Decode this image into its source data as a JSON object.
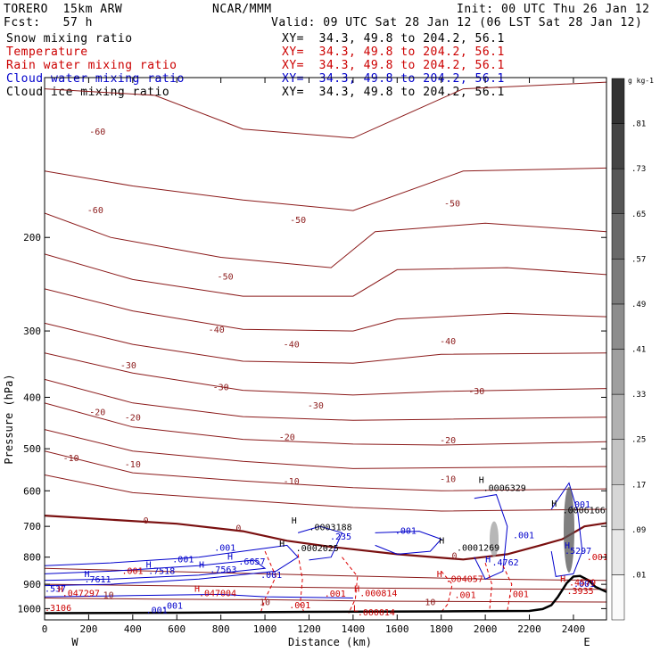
{
  "header": {
    "model": "TORERO  15km ARW",
    "org": "NCAR/MMM",
    "init": "Init: 00 UTC Thu 26 Jan 12",
    "fcst": "Fcst:   57 h",
    "valid": "Valid: 09 UTC Sat 28 Jan 12 (06 LST Sat 28 Jan 12)"
  },
  "fields": [
    {
      "name": "Snow mixing ratio",
      "xy": "XY=  34.3, 49.8 to 204.2, 56.1",
      "name_color": "#000000",
      "xy_color": "#000000"
    },
    {
      "name": "Temperature",
      "xy": "XY=  34.3, 49.8 to 204.2, 56.1",
      "name_color": "#cc0000",
      "xy_color": "#cc0000"
    },
    {
      "name": "Rain water mixing ratio",
      "xy": "XY=  34.3, 49.8 to 204.2, 56.1",
      "name_color": "#cc0000",
      "xy_color": "#cc0000"
    },
    {
      "name": "Cloud water mixing ratio",
      "xy": "XY=  34.3, 49.8 to 204.2, 56.1",
      "name_color": "#0000cc",
      "xy_color": "#0000cc"
    },
    {
      "name": "Cloud ice mixing ratio",
      "xy": "XY=  34.3, 49.8 to 204.2, 56.1",
      "name_color": "#000000",
      "xy_color": "#000000"
    }
  ],
  "chart_data": {
    "type": "contour_cross_section",
    "xlabel": "Distance (km)",
    "ylabel": "Pressure (hPa)",
    "x_ticks": [
      0,
      200,
      400,
      600,
      800,
      1000,
      1200,
      1400,
      1600,
      1800,
      2000,
      2200,
      2400
    ],
    "y_ticks": [
      200,
      300,
      400,
      500,
      600,
      700,
      800,
      900,
      1000
    ],
    "xlim": [
      0,
      2550
    ],
    "ylim": [
      1050,
      100
    ],
    "x_end_labels": {
      "left": "W",
      "right": "E"
    },
    "colorbar": {
      "unit": "g kg-1",
      "levels": [
        ".01",
        ".09",
        ".17",
        ".25",
        ".33",
        ".41",
        ".49",
        ".57",
        ".65",
        ".73",
        ".81"
      ]
    },
    "temperature_contour_labels": [
      {
        "value": "-60",
        "x": 240,
        "p": 128
      },
      {
        "value": "-60",
        "x": 230,
        "p": 180
      },
      {
        "value": "-50",
        "x": 820,
        "p": 240
      },
      {
        "value": "-50",
        "x": 1150,
        "p": 188
      },
      {
        "value": "-50",
        "x": 1850,
        "p": 175
      },
      {
        "value": "-40",
        "x": 780,
        "p": 302
      },
      {
        "value": "-40",
        "x": 1120,
        "p": 322
      },
      {
        "value": "-40",
        "x": 1830,
        "p": 318
      },
      {
        "value": "-30",
        "x": 380,
        "p": 353
      },
      {
        "value": "-30",
        "x": 800,
        "p": 388
      },
      {
        "value": "-30",
        "x": 1230,
        "p": 420
      },
      {
        "value": "-30",
        "x": 1960,
        "p": 395
      },
      {
        "value": "-20",
        "x": 240,
        "p": 432
      },
      {
        "value": "-20",
        "x": 400,
        "p": 442
      },
      {
        "value": "-20",
        "x": 1100,
        "p": 482
      },
      {
        "value": "-20",
        "x": 1830,
        "p": 488
      },
      {
        "value": "-10",
        "x": 120,
        "p": 527
      },
      {
        "value": "-10",
        "x": 400,
        "p": 542
      },
      {
        "value": "-10",
        "x": 1120,
        "p": 583
      },
      {
        "value": "-10",
        "x": 1830,
        "p": 578
      },
      {
        "value": "0",
        "x": 460,
        "p": 692
      },
      {
        "value": "0",
        "x": 880,
        "p": 715
      },
      {
        "value": "0",
        "x": 1860,
        "p": 805
      },
      {
        "value": "10",
        "x": 290,
        "p": 955
      },
      {
        "value": "10",
        "x": 1000,
        "p": 985
      },
      {
        "value": "10",
        "x": 1750,
        "p": 985
      }
    ],
    "maxima_labels": [
      {
        "text": "H",
        "x": 1970,
        "p": 580,
        "color": "#000000"
      },
      {
        "text": ".0006329",
        "x": 1990,
        "p": 600,
        "color": "#000000"
      },
      {
        "text": "H",
        "x": 2300,
        "p": 642,
        "color": "#000000"
      },
      {
        "text": ".0006166",
        "x": 2350,
        "p": 662,
        "color": "#000000"
      },
      {
        "text": ".001",
        "x": 2380,
        "p": 645,
        "color": "#0000cc"
      },
      {
        "text": "H",
        "x": 1120,
        "p": 692,
        "color": "#000000"
      },
      {
        "text": ".0003188",
        "x": 1200,
        "p": 712,
        "color": "#000000"
      },
      {
        "text": "H",
        "x": 1065,
        "p": 765,
        "color": "#000000"
      },
      {
        "text": ".0002025",
        "x": 1140,
        "p": 780,
        "color": "#000000"
      },
      {
        "text": "H",
        "x": 1790,
        "p": 755,
        "color": "#000000"
      },
      {
        "text": ".0001269",
        "x": 1870,
        "p": 778,
        "color": "#000000"
      },
      {
        "text": ".235",
        "x": 1295,
        "p": 742,
        "color": "#0000cc"
      },
      {
        "text": ".001",
        "x": 1590,
        "p": 723,
        "color": "#0000cc"
      },
      {
        "text": ".001",
        "x": 2125,
        "p": 737,
        "color": "#0000cc"
      },
      {
        "text": ".001",
        "x": 770,
        "p": 778,
        "color": "#0000cc"
      },
      {
        "text": ".001",
        "x": 580,
        "p": 818,
        "color": "#0000cc"
      },
      {
        "text": "H",
        "x": 830,
        "p": 808,
        "color": "#0000cc"
      },
      {
        "text": ".6657",
        "x": 880,
        "p": 826,
        "color": "#0000cc"
      },
      {
        "text": "H",
        "x": 700,
        "p": 838,
        "color": "#0000cc"
      },
      {
        "text": ".7563",
        "x": 750,
        "p": 855,
        "color": "#0000cc"
      },
      {
        "text": "H",
        "x": 460,
        "p": 838,
        "color": "#0000cc"
      },
      {
        "text": ".7518",
        "x": 470,
        "p": 860,
        "color": "#0000cc"
      },
      {
        "text": "H",
        "x": 180,
        "p": 872,
        "color": "#0000cc"
      },
      {
        "text": ".7611",
        "x": 180,
        "p": 893,
        "color": "#0000cc"
      },
      {
        "text": ".537",
        "x": 0,
        "p": 930,
        "color": "#0000cc"
      },
      {
        "text": ".001",
        "x": 980,
        "p": 875,
        "color": "#0000cc"
      },
      {
        "text": "H",
        "x": 2000,
        "p": 818,
        "color": "#0000cc"
      },
      {
        "text": ".4762",
        "x": 2030,
        "p": 830,
        "color": "#0000cc"
      },
      {
        "text": "H",
        "x": 2360,
        "p": 770,
        "color": "#0000cc"
      },
      {
        "text": ".5297",
        "x": 2360,
        "p": 788,
        "color": "#0000cc"
      },
      {
        "text": ".001",
        "x": 2400,
        "p": 910,
        "color": "#0000cc"
      },
      {
        "text": ".001",
        "x": 530,
        "p": 1000,
        "color": "#0000cc"
      },
      {
        "text": ".001",
        "x": 460,
        "p": 1020,
        "color": "#0000cc"
      },
      {
        "text": "H",
        "x": 60,
        "p": 932,
        "color": "#cc0000"
      },
      {
        "text": ".047297",
        "x": 80,
        "p": 948,
        "color": "#cc0000"
      },
      {
        "text": "H",
        "x": 680,
        "p": 930,
        "color": "#cc0000"
      },
      {
        "text": ".047004",
        "x": 700,
        "p": 948,
        "color": "#cc0000"
      },
      {
        "text": "H",
        "x": 1405,
        "p": 930,
        "color": "#cc0000"
      },
      {
        "text": ".000814",
        "x": 1430,
        "p": 948,
        "color": "#cc0000"
      },
      {
        "text": "L",
        "x": 1400,
        "p": 1012,
        "color": "#cc0000"
      },
      {
        "text": ".000014",
        "x": 1420,
        "p": 1030,
        "color": "#cc0000"
      },
      {
        "text": "H",
        "x": 1780,
        "p": 872,
        "color": "#cc0000"
      },
      {
        "text": ".004057",
        "x": 1820,
        "p": 890,
        "color": "#cc0000"
      },
      {
        "text": "H",
        "x": 2340,
        "p": 890,
        "color": "#cc0000"
      },
      {
        "text": ".3935",
        "x": 2370,
        "p": 938,
        "color": "#cc0000"
      },
      {
        "text": ".001",
        "x": 1860,
        "p": 955,
        "color": "#cc0000"
      },
      {
        "text": ".001",
        "x": 2100,
        "p": 952,
        "color": "#cc0000"
      },
      {
        "text": ".001",
        "x": 1270,
        "p": 950,
        "color": "#cc0000"
      },
      {
        "text": ".001",
        "x": 1110,
        "p": 998,
        "color": "#cc0000"
      },
      {
        "text": ".001",
        "x": 350,
        "p": 860,
        "color": "#cc0000"
      },
      {
        "text": ".3106",
        "x": 0,
        "p": 1010,
        "color": "#cc0000"
      },
      {
        "text": ".001",
        "x": 2460,
        "p": 810,
        "color": "#cc0000"
      },
      {
        "text": ".4579",
        "x": 2380,
        "p": 905,
        "color": "#cc0000"
      }
    ],
    "terrain": [
      [
        0,
        1020
      ],
      [
        600,
        1018
      ],
      [
        1200,
        1014
      ],
      [
        1800,
        1012
      ],
      [
        2200,
        1010
      ],
      [
        2260,
        1002
      ],
      [
        2300,
        985
      ],
      [
        2330,
        950
      ],
      [
        2370,
        895
      ],
      [
        2400,
        870
      ],
      [
        2430,
        868
      ],
      [
        2470,
        885
      ],
      [
        2500,
        910
      ],
      [
        2550,
        930
      ]
    ]
  }
}
